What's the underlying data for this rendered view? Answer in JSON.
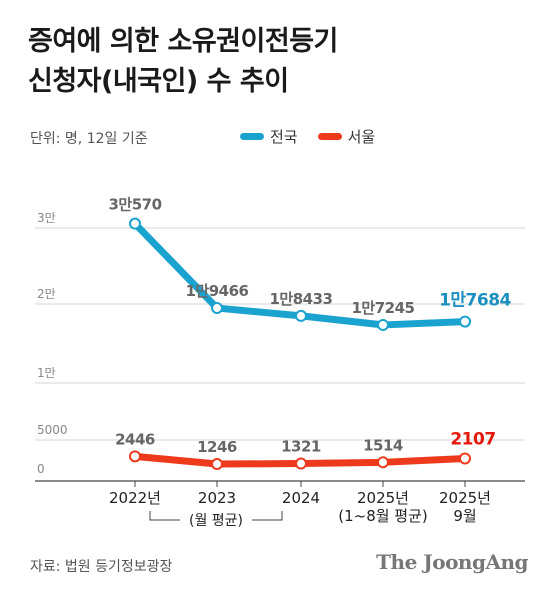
{
  "title_line1": "증여에 의한 소유권이전등기",
  "title_line2": "신청자(내국인) 수 추이",
  "unit_note": "단위: 명, 12일 기준",
  "source": "자료: 법원 등기정보광장",
  "brand": "The JoongAng",
  "colors": {
    "national": "#1ba3cf",
    "seoul": "#ee3a1c",
    "national_label": "#1a8fc0",
    "seoul_label": "#e3170a"
  },
  "chart_data": {
    "type": "line",
    "categories": [
      "2022년",
      "2023",
      "2024",
      "2025년\n(1~8월 평균)",
      "2025년\n9월"
    ],
    "range_note": "(월 평균)",
    "y_ticks": [
      {
        "value": 0,
        "label": "0"
      },
      {
        "value": 5000,
        "label": "5000"
      },
      {
        "value": 10000,
        "label": "1만"
      },
      {
        "value": 20000,
        "label": "2만"
      },
      {
        "value": 30000,
        "label": "3만"
      }
    ],
    "series": [
      {
        "name": "전국",
        "values": [
          30570,
          19466,
          18433,
          17245,
          17684
        ],
        "labels": [
          "3만570",
          "1만9466",
          "1만8433",
          "1만7245",
          "1만7684"
        ]
      },
      {
        "name": "서울",
        "values": [
          2446,
          1246,
          1321,
          1514,
          2107
        ],
        "labels": [
          "2446",
          "1246",
          "1321",
          "1514",
          "2107"
        ]
      }
    ]
  }
}
